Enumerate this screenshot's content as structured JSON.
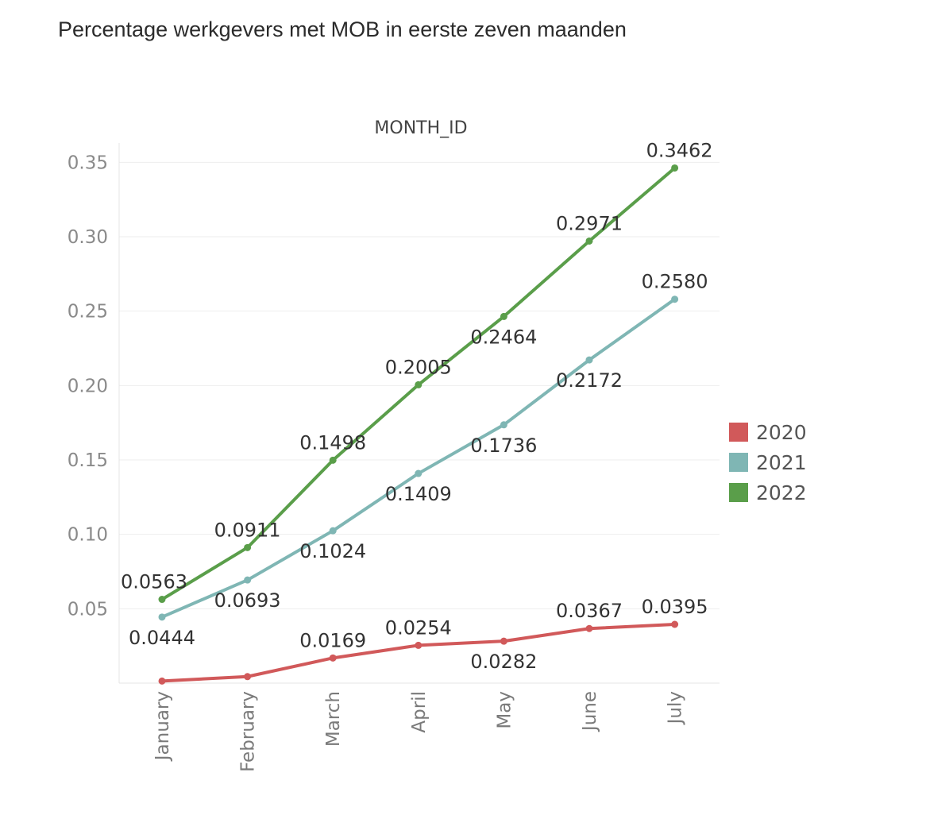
{
  "page": {
    "title": "Percentage werkgevers met MOB in eerste zeven maanden"
  },
  "chart_data": {
    "type": "line",
    "title": "Percentage werkgevers met MOB in eerste zeven maanden",
    "axis_header": "MONTH_ID",
    "categories": [
      "January",
      "February",
      "March",
      "April",
      "May",
      "June",
      "July"
    ],
    "y_ticks": [
      "0.05",
      "0.10",
      "0.15",
      "0.20",
      "0.25",
      "0.30",
      "0.35"
    ],
    "ylim": [
      0,
      0.35
    ],
    "grid": true,
    "legend_position": "right",
    "series": [
      {
        "name": "2020",
        "color": "#d1595a",
        "values": [
          0.0014,
          0.0044,
          0.0169,
          0.0254,
          0.0282,
          0.0367,
          0.0395
        ],
        "labels": [
          "",
          "",
          "0.0169",
          "0.0254",
          "0.0282",
          "0.0367",
          "0.0395"
        ],
        "label_pos": [
          "",
          "",
          "above",
          "above",
          "below",
          "above",
          "above"
        ]
      },
      {
        "name": "2021",
        "color": "#7fb6b4",
        "values": [
          0.0444,
          0.0693,
          0.1024,
          0.1409,
          0.1736,
          0.2172,
          0.258
        ],
        "labels": [
          "0.0444",
          "0.0693",
          "0.1024",
          "0.1409",
          "0.1736",
          "0.2172",
          "0.2580"
        ],
        "label_pos": [
          "below",
          "below",
          "below",
          "below",
          "below",
          "below",
          "above"
        ]
      },
      {
        "name": "2022",
        "color": "#5a9e4a",
        "values": [
          0.0563,
          0.0911,
          0.1498,
          0.2005,
          0.2464,
          0.2971,
          0.3462
        ],
        "labels": [
          "0.0563",
          "0.0911",
          "0.1498",
          "0.2005",
          "0.2464",
          "0.2971",
          "0.3462"
        ],
        "label_pos": [
          "above",
          "above",
          "above",
          "above",
          "below",
          "above",
          "above"
        ]
      }
    ]
  }
}
